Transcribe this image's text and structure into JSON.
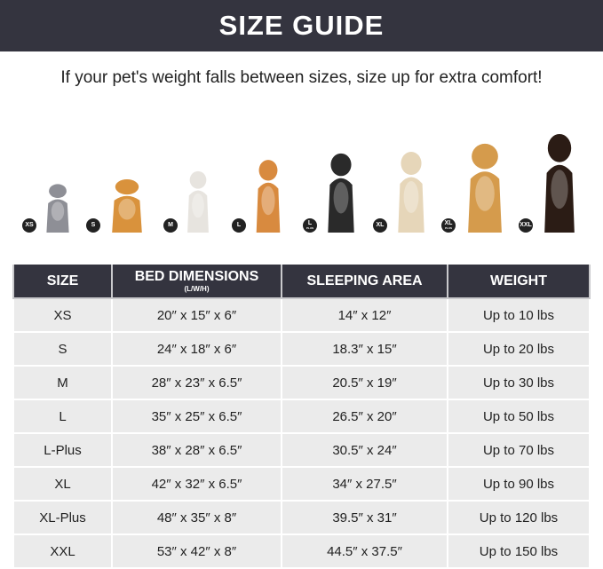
{
  "header": {
    "title": "SIZE GUIDE"
  },
  "subtitle": "If your pet's weight falls between sizes, size up for extra comfort!",
  "pets": [
    {
      "badge": "XS",
      "plus": "",
      "animal": "cat",
      "color": "#8e8f96"
    },
    {
      "badge": "S",
      "plus": "",
      "animal": "pomeranian",
      "color": "#d9923c"
    },
    {
      "badge": "M",
      "plus": "",
      "animal": "french-bulldog",
      "color": "#e7e4df"
    },
    {
      "badge": "L",
      "plus": "",
      "animal": "shiba-inu",
      "color": "#d88a3f"
    },
    {
      "badge": "L",
      "plus": "PLUS",
      "animal": "border-collie",
      "color": "#2a2a2a"
    },
    {
      "badge": "XL",
      "plus": "",
      "animal": "labrador",
      "color": "#e6d6b9"
    },
    {
      "badge": "XL",
      "plus": "PLUS",
      "animal": "golden-retriever",
      "color": "#d59b4c"
    },
    {
      "badge": "XXL",
      "plus": "",
      "animal": "doberman",
      "color": "#2b1c15"
    }
  ],
  "table": {
    "headers": {
      "size": "SIZE",
      "bed": "BED DIMENSIONS",
      "bed_sub": "(L/W/H)",
      "area": "SLEEPING AREA",
      "weight": "WEIGHT"
    },
    "rows": [
      [
        "XS",
        "20″ x 15″ x 6″",
        "14″ x 12″",
        "Up to 10 lbs"
      ],
      [
        "S",
        "24″ x 18″ x 6″",
        "18.3″ x 15″",
        "Up to 20 lbs"
      ],
      [
        "M",
        "28″ x 23″ x 6.5″",
        "20.5″ x 19″",
        "Up to 30 lbs"
      ],
      [
        "L",
        "35″ x 25″ x 6.5″",
        "26.5″ x 20″",
        "Up to 50 lbs"
      ],
      [
        "L-Plus",
        "38″ x 28″ x 6.5″",
        "30.5″ x 24″",
        "Up to 70 lbs"
      ],
      [
        "XL",
        "42″ x 32″ x 6.5″",
        "34″ x 27.5″",
        "Up to 90 lbs"
      ],
      [
        "XL-Plus",
        "48″ x 35″ x 8″",
        "39.5″ x 31″",
        "Up to 120 lbs"
      ],
      [
        "XXL",
        "53″ x 42″ x 8″",
        "44.5″ x 37.5″",
        "Up to 150 lbs"
      ]
    ]
  }
}
